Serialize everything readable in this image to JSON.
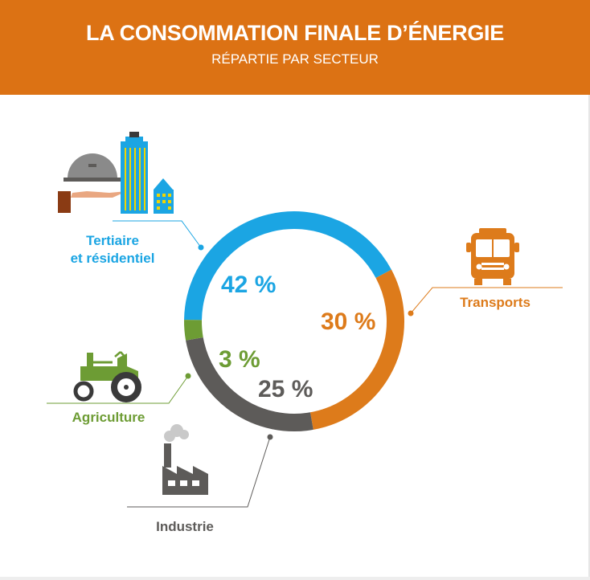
{
  "header": {
    "title": "LA CONSOMMATION FINALE D’ÉNERGIE",
    "subtitle": "RÉPARTIE PAR SECTEUR"
  },
  "colors": {
    "header_bg": "#dc7214",
    "tertiaire": "#1ba5e3",
    "transports": "#dd7b1b",
    "industrie": "#5d5b59",
    "agriculture": "#6d9c34"
  },
  "labels": {
    "tertiaire": "Tertiaire\net résidentiel",
    "transports": "Transports",
    "industrie": "Industrie",
    "agriculture": "Agriculture"
  },
  "icons": {
    "tertiaire": "hotel-buildings-icon",
    "transports": "bus-icon",
    "industrie": "factory-icon",
    "agriculture": "tractor-icon"
  },
  "chart_data": {
    "type": "pie",
    "title": "LA CONSOMMATION FINALE D’ÉNERGIE",
    "subtitle": "RÉPARTIE PAR SECTEUR",
    "categories": [
      "Tertiaire et résidentiel",
      "Transports",
      "Industrie",
      "Agriculture"
    ],
    "values": [
      42,
      30,
      25,
      3
    ],
    "value_labels": [
      "42 %",
      "30 %",
      "25 %",
      "3 %"
    ],
    "unit": "%",
    "colors": [
      "#1ba5e3",
      "#dd7b1b",
      "#5d5b59",
      "#6d9c34"
    ]
  }
}
